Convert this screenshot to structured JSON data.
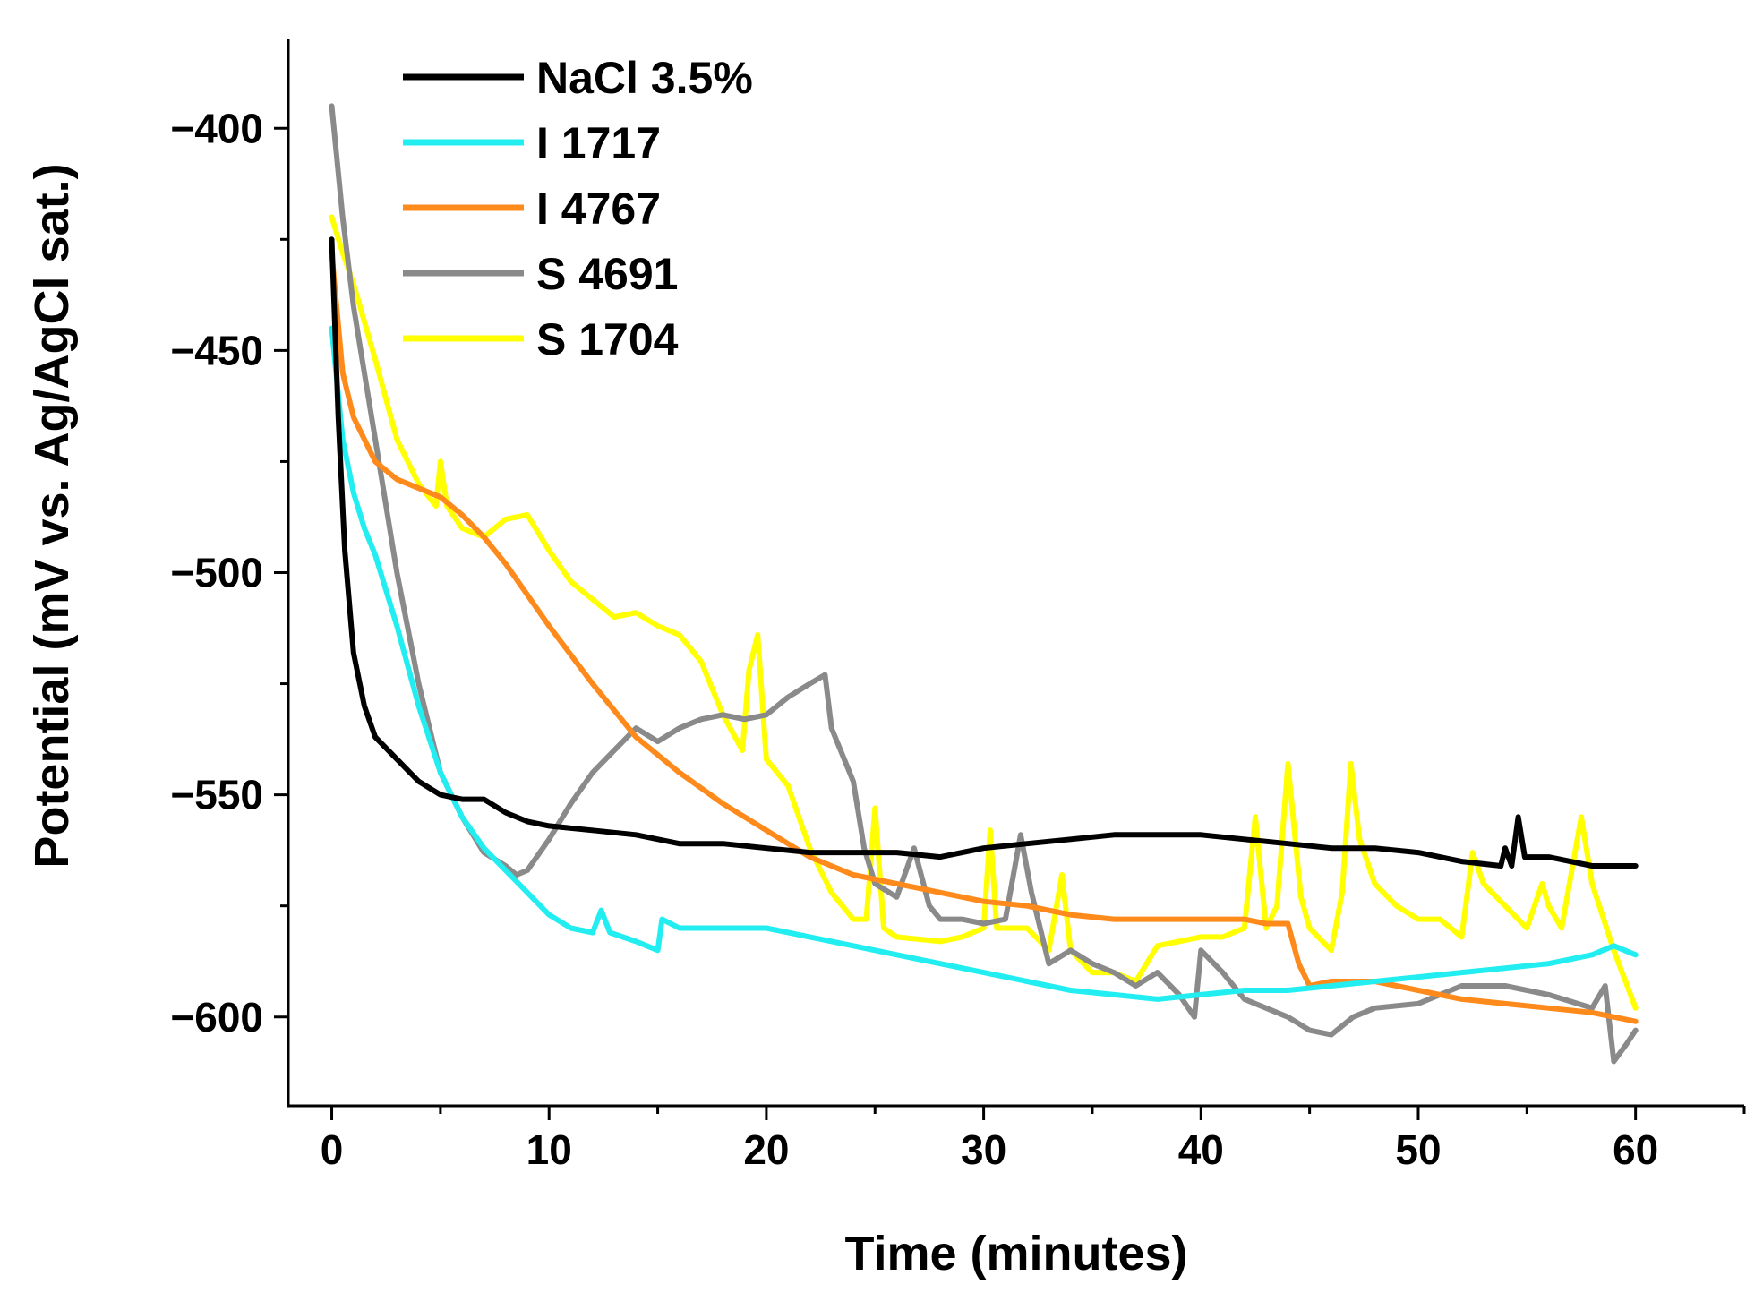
{
  "chart_data": {
    "type": "line",
    "title": "",
    "xlabel": "Time (minutes)",
    "ylabel": "Potential (mV vs. Ag/AgCl sat.)",
    "xlim": [
      -2,
      65
    ],
    "ylim": [
      -620,
      -380
    ],
    "xticks": [
      0,
      10,
      20,
      30,
      40,
      50,
      60
    ],
    "yticks": [
      -400,
      -450,
      -500,
      -550,
      -600
    ],
    "xtick_labels": [
      "0",
      "10",
      "20",
      "30",
      "40",
      "50",
      "60"
    ],
    "ytick_labels": [
      "−400",
      "−450",
      "−500",
      "−550",
      "−600"
    ],
    "grid": false,
    "legend_position": "top-left",
    "series": [
      {
        "name": "NaCl 3.5%",
        "color": "#000000",
        "points": [
          [
            0,
            -425
          ],
          [
            0.3,
            -465
          ],
          [
            0.6,
            -495
          ],
          [
            1,
            -518
          ],
          [
            1.5,
            -530
          ],
          [
            2,
            -537
          ],
          [
            3,
            -542
          ],
          [
            4,
            -547
          ],
          [
            5,
            -550
          ],
          [
            6,
            -551
          ],
          [
            7,
            -551
          ],
          [
            8,
            -554
          ],
          [
            9,
            -556
          ],
          [
            10,
            -557
          ],
          [
            12,
            -558
          ],
          [
            14,
            -559
          ],
          [
            16,
            -561
          ],
          [
            18,
            -561
          ],
          [
            20,
            -562
          ],
          [
            22,
            -563
          ],
          [
            24,
            -563
          ],
          [
            26,
            -563
          ],
          [
            28,
            -564
          ],
          [
            30,
            -562
          ],
          [
            32,
            -561
          ],
          [
            34,
            -560
          ],
          [
            36,
            -559
          ],
          [
            38,
            -559
          ],
          [
            40,
            -559
          ],
          [
            42,
            -560
          ],
          [
            44,
            -561
          ],
          [
            46,
            -562
          ],
          [
            48,
            -562
          ],
          [
            50,
            -563
          ],
          [
            52,
            -565
          ],
          [
            53.8,
            -566
          ],
          [
            54,
            -562
          ],
          [
            54.3,
            -566
          ],
          [
            54.6,
            -555
          ],
          [
            54.9,
            -564
          ],
          [
            56,
            -564
          ],
          [
            58,
            -566
          ],
          [
            60,
            -566
          ]
        ]
      },
      {
        "name": "I 1717",
        "color": "#22eef2",
        "points": [
          [
            0,
            -445
          ],
          [
            0.5,
            -470
          ],
          [
            1,
            -482
          ],
          [
            1.5,
            -490
          ],
          [
            2,
            -496
          ],
          [
            3,
            -512
          ],
          [
            4,
            -530
          ],
          [
            5,
            -545
          ],
          [
            6,
            -555
          ],
          [
            7,
            -562
          ],
          [
            8,
            -567
          ],
          [
            9,
            -572
          ],
          [
            10,
            -577
          ],
          [
            11,
            -580
          ],
          [
            12,
            -581
          ],
          [
            12.4,
            -576
          ],
          [
            12.8,
            -581
          ],
          [
            14,
            -583
          ],
          [
            15,
            -585
          ],
          [
            15.2,
            -578
          ],
          [
            16,
            -580
          ],
          [
            18,
            -580
          ],
          [
            20,
            -580
          ],
          [
            22,
            -582
          ],
          [
            24,
            -584
          ],
          [
            26,
            -586
          ],
          [
            28,
            -588
          ],
          [
            30,
            -590
          ],
          [
            32,
            -592
          ],
          [
            34,
            -594
          ],
          [
            36,
            -595
          ],
          [
            38,
            -596
          ],
          [
            40,
            -595
          ],
          [
            42,
            -594
          ],
          [
            44,
            -594
          ],
          [
            46,
            -593
          ],
          [
            48,
            -592
          ],
          [
            50,
            -591
          ],
          [
            52,
            -590
          ],
          [
            54,
            -589
          ],
          [
            56,
            -588
          ],
          [
            58,
            -586
          ],
          [
            59,
            -584
          ],
          [
            60,
            -586
          ]
        ]
      },
      {
        "name": "I 4767",
        "color": "#ff8a1c",
        "points": [
          [
            0,
            -428
          ],
          [
            0.5,
            -455
          ],
          [
            1,
            -465
          ],
          [
            2,
            -475
          ],
          [
            3,
            -479
          ],
          [
            4,
            -481
          ],
          [
            5,
            -483
          ],
          [
            6,
            -487
          ],
          [
            7,
            -492
          ],
          [
            8,
            -498
          ],
          [
            9,
            -505
          ],
          [
            10,
            -512
          ],
          [
            12,
            -525
          ],
          [
            14,
            -537
          ],
          [
            16,
            -545
          ],
          [
            18,
            -552
          ],
          [
            20,
            -558
          ],
          [
            22,
            -564
          ],
          [
            24,
            -568
          ],
          [
            26,
            -570
          ],
          [
            28,
            -572
          ],
          [
            30,
            -574
          ],
          [
            32,
            -575
          ],
          [
            34,
            -577
          ],
          [
            36,
            -578
          ],
          [
            38,
            -578
          ],
          [
            40,
            -578
          ],
          [
            42,
            -578
          ],
          [
            43,
            -579
          ],
          [
            44,
            -579
          ],
          [
            44.5,
            -588
          ],
          [
            45,
            -593
          ],
          [
            46,
            -592
          ],
          [
            48,
            -592
          ],
          [
            50,
            -594
          ],
          [
            52,
            -596
          ],
          [
            54,
            -597
          ],
          [
            56,
            -598
          ],
          [
            58,
            -599
          ],
          [
            60,
            -601
          ]
        ]
      },
      {
        "name": "S 4691",
        "color": "#8a8a8a",
        "points": [
          [
            0,
            -395
          ],
          [
            0.5,
            -420
          ],
          [
            1,
            -440
          ],
          [
            1.5,
            -455
          ],
          [
            2,
            -470
          ],
          [
            3,
            -500
          ],
          [
            4,
            -525
          ],
          [
            5,
            -545
          ],
          [
            6,
            -555
          ],
          [
            7,
            -563
          ],
          [
            8,
            -566
          ],
          [
            8.5,
            -568
          ],
          [
            9,
            -567
          ],
          [
            10,
            -560
          ],
          [
            11,
            -552
          ],
          [
            12,
            -545
          ],
          [
            13,
            -540
          ],
          [
            14,
            -535
          ],
          [
            15,
            -538
          ],
          [
            16,
            -535
          ],
          [
            17,
            -533
          ],
          [
            18,
            -532
          ],
          [
            19,
            -533
          ],
          [
            20,
            -532
          ],
          [
            21,
            -528
          ],
          [
            22,
            -525
          ],
          [
            22.7,
            -523
          ],
          [
            23,
            -535
          ],
          [
            24,
            -547
          ],
          [
            24.5,
            -562
          ],
          [
            25,
            -570
          ],
          [
            26,
            -573
          ],
          [
            26.8,
            -562
          ],
          [
            27.5,
            -575
          ],
          [
            28,
            -578
          ],
          [
            29,
            -578
          ],
          [
            30,
            -579
          ],
          [
            31,
            -578
          ],
          [
            31.7,
            -559
          ],
          [
            32.2,
            -572
          ],
          [
            33,
            -588
          ],
          [
            34,
            -585
          ],
          [
            35,
            -588
          ],
          [
            36,
            -590
          ],
          [
            37,
            -593
          ],
          [
            38,
            -590
          ],
          [
            39,
            -595
          ],
          [
            39.7,
            -600
          ],
          [
            40,
            -585
          ],
          [
            41,
            -590
          ],
          [
            42,
            -596
          ],
          [
            43,
            -598
          ],
          [
            44,
            -600
          ],
          [
            45,
            -603
          ],
          [
            46,
            -604
          ],
          [
            47,
            -600
          ],
          [
            48,
            -598
          ],
          [
            50,
            -597
          ],
          [
            52,
            -593
          ],
          [
            54,
            -593
          ],
          [
            56,
            -595
          ],
          [
            58,
            -598
          ],
          [
            58.6,
            -593
          ],
          [
            59,
            -610
          ],
          [
            59.6,
            -606
          ],
          [
            60,
            -603
          ]
        ]
      },
      {
        "name": "S 1704",
        "color": "#ffff00",
        "points": [
          [
            0,
            -420
          ],
          [
            0.5,
            -428
          ],
          [
            1,
            -435
          ],
          [
            2,
            -452
          ],
          [
            3,
            -470
          ],
          [
            4,
            -480
          ],
          [
            4.8,
            -485
          ],
          [
            5,
            -475
          ],
          [
            5.3,
            -485
          ],
          [
            6,
            -490
          ],
          [
            7,
            -492
          ],
          [
            8,
            -488
          ],
          [
            9,
            -487
          ],
          [
            10,
            -495
          ],
          [
            11,
            -502
          ],
          [
            12,
            -506
          ],
          [
            13,
            -510
          ],
          [
            14,
            -509
          ],
          [
            15,
            -512
          ],
          [
            16,
            -514
          ],
          [
            17,
            -520
          ],
          [
            18,
            -532
          ],
          [
            18.9,
            -540
          ],
          [
            19.2,
            -522
          ],
          [
            19.6,
            -514
          ],
          [
            20,
            -542
          ],
          [
            21,
            -548
          ],
          [
            22,
            -562
          ],
          [
            23,
            -572
          ],
          [
            24,
            -578
          ],
          [
            24.6,
            -578
          ],
          [
            25,
            -553
          ],
          [
            25.4,
            -580
          ],
          [
            26,
            -582
          ],
          [
            28,
            -583
          ],
          [
            29,
            -582
          ],
          [
            30,
            -580
          ],
          [
            30.3,
            -558
          ],
          [
            30.6,
            -580
          ],
          [
            31,
            -580
          ],
          [
            32,
            -580
          ],
          [
            33,
            -585
          ],
          [
            33.6,
            -568
          ],
          [
            34,
            -585
          ],
          [
            35,
            -590
          ],
          [
            36,
            -590
          ],
          [
            37,
            -592
          ],
          [
            38,
            -584
          ],
          [
            40,
            -582
          ],
          [
            41,
            -582
          ],
          [
            42,
            -580
          ],
          [
            42.5,
            -555
          ],
          [
            43,
            -580
          ],
          [
            43.5,
            -575
          ],
          [
            44,
            -543
          ],
          [
            44.6,
            -573
          ],
          [
            45,
            -580
          ],
          [
            46,
            -585
          ],
          [
            46.5,
            -572
          ],
          [
            46.9,
            -543
          ],
          [
            47.3,
            -560
          ],
          [
            48,
            -570
          ],
          [
            49,
            -575
          ],
          [
            50,
            -578
          ],
          [
            51,
            -578
          ],
          [
            52,
            -582
          ],
          [
            52.5,
            -563
          ],
          [
            53,
            -570
          ],
          [
            54,
            -575
          ],
          [
            55,
            -580
          ],
          [
            55.7,
            -570
          ],
          [
            56,
            -575
          ],
          [
            56.6,
            -580
          ],
          [
            57.5,
            -555
          ],
          [
            58,
            -570
          ],
          [
            59,
            -585
          ],
          [
            60,
            -598
          ]
        ]
      }
    ]
  }
}
